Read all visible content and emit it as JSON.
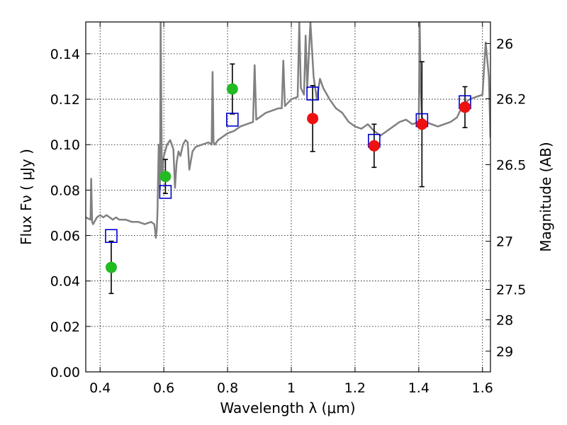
{
  "chart_data": {
    "type": "scatter",
    "xlabel": "Wavelength  λ (μm)",
    "ylabel": "Flux  Fν  ( μJy )",
    "ylabel2": "Magnitude (AB)",
    "xlim": [
      0.355,
      1.625
    ],
    "ylim": [
      0.0,
      0.154
    ],
    "grid": true,
    "x_ticks": [
      0.4,
      0.6,
      0.8,
      1.0,
      1.2,
      1.4,
      1.6
    ],
    "x_tick_labels": [
      "0.4",
      "0.6",
      "0.8",
      "1",
      "1.2",
      "1.4",
      "1.6"
    ],
    "y_ticks": [
      0.0,
      0.02,
      0.04,
      0.06,
      0.08,
      0.1,
      0.12,
      0.14
    ],
    "y_tick_labels": [
      "0.00",
      "0.02",
      "0.04",
      "0.06",
      "0.08",
      "0.10",
      "0.12",
      "0.14"
    ],
    "right_ticks": [
      {
        "label": "26",
        "flux": 0.1445
      },
      {
        "label": "26.2",
        "flux": 0.1202
      },
      {
        "label": "26.5",
        "flux": 0.0912
      },
      {
        "label": "27",
        "flux": 0.0575
      },
      {
        "label": "27.5",
        "flux": 0.0363
      },
      {
        "label": "28",
        "flux": 0.0229
      },
      {
        "label": "29",
        "flux": 0.0091
      }
    ],
    "model_spectrum": {
      "color": "#808080",
      "x": [
        0.355,
        0.37,
        0.372,
        0.375,
        0.378,
        0.39,
        0.4,
        0.41,
        0.42,
        0.43,
        0.44,
        0.45,
        0.46,
        0.48,
        0.5,
        0.52,
        0.54,
        0.56,
        0.57,
        0.573,
        0.575,
        0.578,
        0.58,
        0.584,
        0.588,
        0.59,
        0.594,
        0.6,
        0.61,
        0.62,
        0.63,
        0.635,
        0.64,
        0.646,
        0.652,
        0.66,
        0.668,
        0.675,
        0.68,
        0.69,
        0.7,
        0.72,
        0.74,
        0.75,
        0.753,
        0.756,
        0.76,
        0.77,
        0.78,
        0.8,
        0.82,
        0.84,
        0.86,
        0.88,
        0.885,
        0.89,
        0.9,
        0.92,
        0.94,
        0.96,
        0.97,
        0.975,
        0.98,
        1.0,
        1.02,
        1.025,
        1.03,
        1.04,
        1.045,
        1.05,
        1.06,
        1.07,
        1.08,
        1.09,
        1.1,
        1.12,
        1.14,
        1.16,
        1.18,
        1.2,
        1.22,
        1.24,
        1.26,
        1.28,
        1.3,
        1.32,
        1.34,
        1.36,
        1.38,
        1.4,
        1.403,
        1.406,
        1.41,
        1.42,
        1.44,
        1.46,
        1.48,
        1.5,
        1.52,
        1.54,
        1.56,
        1.58,
        1.6,
        1.61,
        1.62,
        1.625
      ],
      "y": [
        0.068,
        0.067,
        0.085,
        0.066,
        0.065,
        0.068,
        0.069,
        0.068,
        0.069,
        0.068,
        0.067,
        0.068,
        0.067,
        0.067,
        0.066,
        0.066,
        0.065,
        0.066,
        0.065,
        0.062,
        0.059,
        0.063,
        0.07,
        0.1,
        0.08,
        0.154,
        0.085,
        0.095,
        0.1,
        0.102,
        0.098,
        0.081,
        0.092,
        0.097,
        0.095,
        0.1,
        0.102,
        0.101,
        0.089,
        0.097,
        0.099,
        0.1,
        0.101,
        0.1,
        0.132,
        0.101,
        0.1,
        0.102,
        0.103,
        0.105,
        0.106,
        0.108,
        0.109,
        0.11,
        0.135,
        0.111,
        0.112,
        0.114,
        0.115,
        0.116,
        0.116,
        0.137,
        0.117,
        0.12,
        0.121,
        0.154,
        0.125,
        0.122,
        0.148,
        0.125,
        0.154,
        0.13,
        0.12,
        0.129,
        0.125,
        0.12,
        0.116,
        0.114,
        0.11,
        0.108,
        0.107,
        0.109,
        0.106,
        0.104,
        0.106,
        0.108,
        0.11,
        0.111,
        0.109,
        0.11,
        0.154,
        0.125,
        0.112,
        0.11,
        0.109,
        0.108,
        0.109,
        0.11,
        0.112,
        0.118,
        0.12,
        0.121,
        0.122,
        0.145,
        0.13,
        0.103
      ]
    },
    "series": [
      {
        "marker": "open-square",
        "color": "#0000cc",
        "x": [
          0.435,
          0.605,
          0.815,
          1.067,
          1.26,
          1.41,
          1.545
        ],
        "y": [
          0.0598,
          0.0792,
          0.111,
          0.1225,
          0.1017,
          0.1108,
          0.1187
        ]
      },
      {
        "marker": "filled-circle",
        "color": "#22bb22",
        "x": [
          0.435,
          0.605,
          0.815
        ],
        "y": [
          0.046,
          0.086,
          0.1245
        ],
        "err": [
          0.0115,
          0.0075,
          0.011
        ]
      },
      {
        "marker": "filled-circle",
        "color": "#ee1111",
        "x": [
          1.067,
          1.26,
          1.41,
          1.545
        ],
        "y": [
          0.1115,
          0.0995,
          0.109,
          0.1165
        ],
        "err": [
          0.0145,
          0.0095,
          0.0275,
          0.009
        ]
      }
    ]
  }
}
